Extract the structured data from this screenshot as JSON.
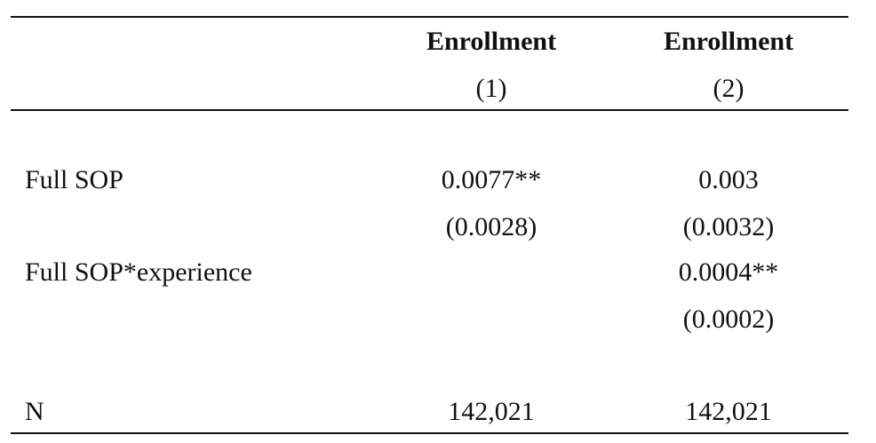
{
  "header": {
    "columns": [
      {
        "title": "Enrollment",
        "number": "(1)"
      },
      {
        "title": "Enrollment",
        "number": "(2)"
      }
    ]
  },
  "table": {
    "rows": [
      {
        "label": "Full SOP",
        "col1": "0.0077**",
        "col2": "0.003",
        "col1_se": "(0.0028)",
        "col2_se": "(0.0032)"
      },
      {
        "label": "Full SOP*experience",
        "col2": "0.0004**",
        "col2_se": "(0.0002)"
      },
      {
        "label": "N",
        "col1": "142,021",
        "col2": "142,021"
      }
    ]
  }
}
